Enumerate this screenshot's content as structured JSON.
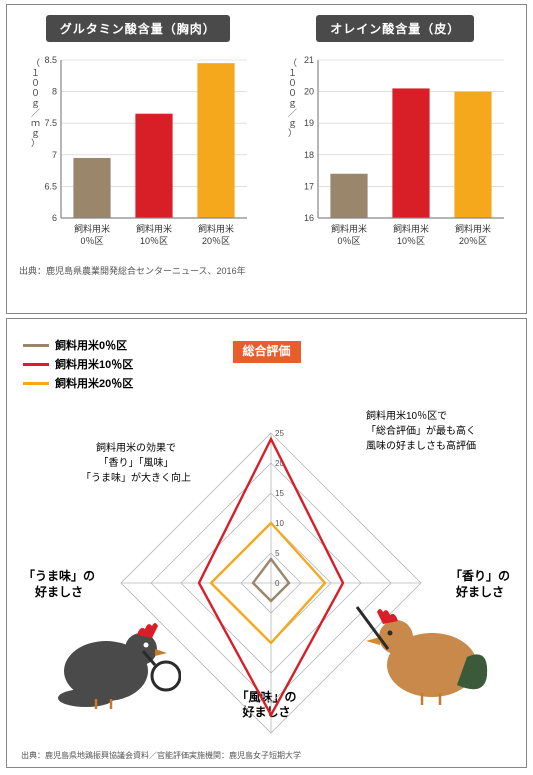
{
  "top": {
    "chart1": {
      "type": "bar",
      "title": "グルタミン酸含量（胸肉）",
      "y_unit": "（１００ｇ／ｍｇ）",
      "ylim": [
        6,
        8.5
      ],
      "yticks": [
        6,
        6.5,
        7,
        7.5,
        8,
        8.5
      ],
      "categories": [
        "飼料用米\n0％区",
        "飼料用米\n10％区",
        "飼料用米\n20％区"
      ],
      "values": [
        6.95,
        7.65,
        8.45
      ],
      "bar_colors": [
        "#9a866b",
        "#d81e27",
        "#f5a81c"
      ],
      "axis_color": "#868686",
      "grid_color": "#cccccc",
      "background": "#ffffff"
    },
    "chart2": {
      "type": "bar",
      "title": "オレイン酸含量（皮）",
      "y_unit": "（１００ｇ／ｇ）",
      "ylim": [
        16,
        21
      ],
      "yticks": [
        16,
        17,
        18,
        19,
        20,
        21
      ],
      "categories": [
        "飼料用米\n0％区",
        "飼料用米\n10％区",
        "飼料用米\n20％区"
      ],
      "values": [
        17.4,
        20.1,
        20.0
      ],
      "bar_colors": [
        "#9a866b",
        "#d81e27",
        "#f5a81c"
      ],
      "axis_color": "#868686",
      "grid_color": "#cccccc",
      "background": "#ffffff"
    },
    "source": "出典：鹿児島県農業開発総合センターニュース、2016年"
  },
  "bottom": {
    "type": "radar",
    "legend": [
      {
        "label": "飼料用米0％区",
        "color": "#9a866b"
      },
      {
        "label": "飼料用米10％区",
        "color": "#d81e27"
      },
      {
        "label": "飼料用米20％区",
        "color": "#f5a81c"
      }
    ],
    "axes": [
      {
        "key": "total",
        "label": "総合評価"
      },
      {
        "key": "aroma",
        "label1": "「香り」の",
        "label2": "好ましさ"
      },
      {
        "key": "flavor",
        "label1": "「風味」の",
        "label2": "好ましさ"
      },
      {
        "key": "umami",
        "label1": "「うま味」の",
        "label2": "好ましさ"
      }
    ],
    "ticks": [
      0,
      5,
      10,
      15,
      20,
      25
    ],
    "max": 25,
    "series": {
      "s0": {
        "color": "#9a866b",
        "values": [
          4,
          3,
          3,
          3
        ]
      },
      "s1": {
        "color": "#d81e27",
        "values": [
          24,
          12,
          22,
          12
        ]
      },
      "s2": {
        "color": "#f5a81c",
        "values": [
          10,
          9,
          10,
          10
        ]
      }
    },
    "grid_color": "#b8b8b8",
    "annotations": {
      "left": "飼料用米の効果で\n「香り」「風味」\n「うま味」が大きく向上",
      "right": "飼料用米10％区で\n「総合評価」が最も高く\n風味の好ましさも高評価"
    },
    "source": "出典：鹿児島県地鶏振興協議会資料／官能評価実施機関：鹿児島女子短期大学"
  }
}
